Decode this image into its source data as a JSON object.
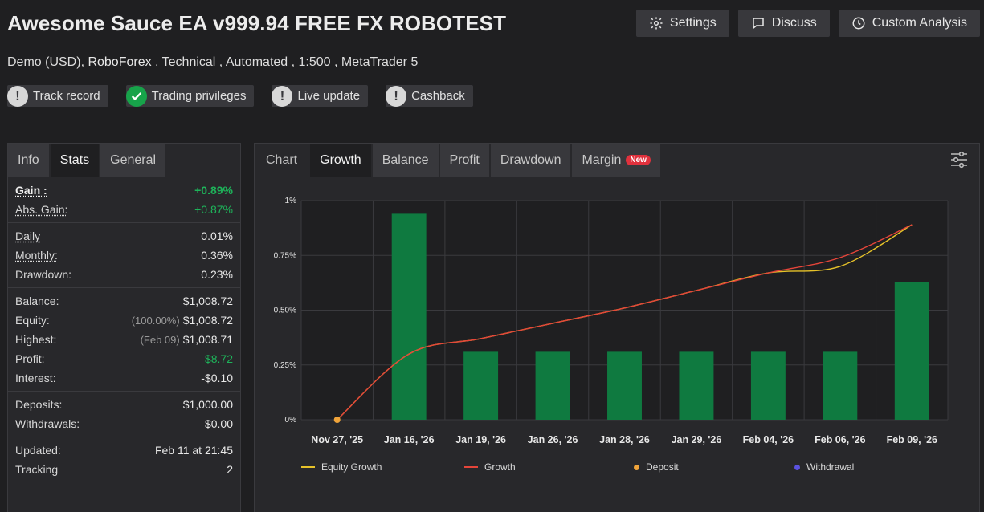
{
  "header": {
    "title": "Awesome Sauce EA v999.94 FREE FX ROBOTEST",
    "subtitle_pre": "Demo (USD), ",
    "broker": "RoboForex",
    "subtitle_post": " , Technical , Automated , 1:500 , MetaTrader 5",
    "buttons": {
      "settings": "Settings",
      "discuss": "Discuss",
      "custom": "Custom Analysis"
    }
  },
  "badges": [
    {
      "label": "Track record",
      "icon": "warning-icon"
    },
    {
      "label": "Trading privileges",
      "icon": "check-icon"
    },
    {
      "label": "Live update",
      "icon": "warning-icon"
    },
    {
      "label": "Cashback",
      "icon": "warning-icon"
    }
  ],
  "left_tabs": {
    "info": "Info",
    "stats": "Stats",
    "general": "General"
  },
  "stats": {
    "gain": {
      "label": "Gain :",
      "value": "+0.89%"
    },
    "abs_gain": {
      "label": "Abs. Gain:",
      "value": "+0.87%"
    },
    "daily": {
      "label": "Daily",
      "value": "0.01%"
    },
    "monthly": {
      "label": "Monthly:",
      "value": "0.36%"
    },
    "drawdown": {
      "label": "Drawdown:",
      "value": "0.23%"
    },
    "balance": {
      "label": "Balance:",
      "value": "$1,008.72"
    },
    "equity": {
      "label": "Equity:",
      "pre": "(100.00%)",
      "value": "$1,008.72"
    },
    "highest": {
      "label": "Highest:",
      "pre": "(Feb 09)",
      "value": "$1,008.71"
    },
    "profit": {
      "label": "Profit:",
      "value": "$8.72"
    },
    "interest": {
      "label": "Interest:",
      "value": "-$0.10"
    },
    "deposits": {
      "label": "Deposits:",
      "value": "$1,000.00"
    },
    "withdrawals": {
      "label": "Withdrawals:",
      "value": "$0.00"
    },
    "updated": {
      "label": "Updated:",
      "value": "Feb 11 at 21:45"
    },
    "tracking": {
      "label": "Tracking",
      "value": "2"
    }
  },
  "chart_tabs": {
    "label": "Chart",
    "growth": "Growth",
    "balance": "Balance",
    "profit": "Profit",
    "drawdown": "Drawdown",
    "margin": "Margin",
    "new": "New"
  },
  "colors": {
    "bar": "#0f7a40",
    "equity": "#e6c229",
    "growth": "#e5453a",
    "deposit": "#f0a43a",
    "withdrawal": "#5b52e0",
    "positive": "#1eb35a"
  },
  "chart_data": {
    "type": "bar",
    "categories": [
      "Nov 27, '25",
      "Jan 16, '26",
      "Jan 19, '26",
      "Jan 26, '26",
      "Jan 28, '26",
      "Jan 29, '26",
      "Feb 04, '26",
      "Feb 06, '26",
      "Feb 09, '26"
    ],
    "y_ticks": [
      "0%",
      "0.25%",
      "0.50%",
      "0.75%",
      "1%"
    ],
    "ylim": [
      0,
      1
    ],
    "bars": [
      0,
      0.94,
      0.31,
      0.31,
      0.31,
      0.31,
      0.31,
      0.31,
      0.63
    ],
    "series": [
      {
        "name": "Equity Growth",
        "values": [
          0,
          0.3,
          0.37,
          0.44,
          0.51,
          0.59,
          0.67,
          0.7,
          0.89
        ]
      },
      {
        "name": "Growth",
        "values": [
          0,
          0.3,
          0.37,
          0.44,
          0.51,
          0.59,
          0.67,
          0.74,
          0.89
        ]
      }
    ],
    "deposit_points": [
      {
        "x": "Nov 27, '25",
        "y": 0
      }
    ],
    "legend": [
      "Equity Growth",
      "Growth",
      "Deposit",
      "Withdrawal"
    ],
    "grid": true,
    "legend_position": "bottom"
  }
}
